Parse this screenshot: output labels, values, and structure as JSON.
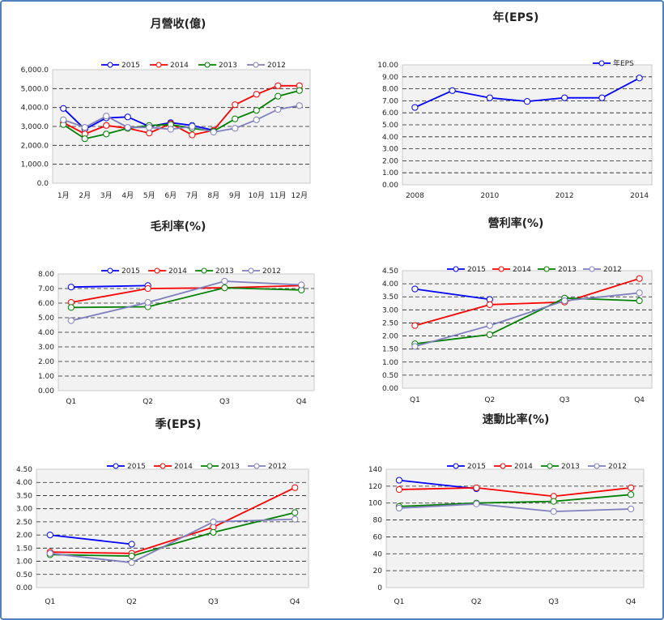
{
  "chart_data": [
    {
      "id": "c1",
      "type": "line",
      "title": "月營收(億)",
      "categories": [
        "1月",
        "2月",
        "3月",
        "4月",
        "5月",
        "6月",
        "7月",
        "8月",
        "9月",
        "10月",
        "11月",
        "12月"
      ],
      "ylim": [
        0,
        6000
      ],
      "ytick_step": 1000,
      "ytick_labels": [
        "0.0",
        "1,000.0",
        "2,000.0",
        "3,000.0",
        "4,000.0",
        "5,000.0",
        "6,000.0"
      ],
      "grid": true,
      "legend_position": "top",
      "series": [
        {
          "name": "2015",
          "color": "#0000ff",
          "values": [
            3950,
            2850,
            3450,
            3500,
            3000,
            3200,
            3050,
            2800,
            null,
            null,
            null,
            null
          ]
        },
        {
          "name": "2014",
          "color": "#ff0000",
          "values": [
            3200,
            2600,
            3050,
            2900,
            2650,
            3150,
            2550,
            2800,
            4150,
            4700,
            5150,
            5150
          ]
        },
        {
          "name": "2013",
          "color": "#008000",
          "values": [
            3100,
            2350,
            2600,
            2900,
            3050,
            3100,
            2900,
            2750,
            3400,
            3850,
            4600,
            4900
          ]
        },
        {
          "name": "2012",
          "color": "#7f7fbf",
          "values": [
            3350,
            2950,
            3550,
            2950,
            2950,
            2850,
            3000,
            2700,
            2900,
            3350,
            3900,
            4100
          ]
        }
      ]
    },
    {
      "id": "c2",
      "type": "line",
      "title": "年(EPS)",
      "categories": [
        "2008",
        "2009",
        "2010",
        "2011",
        "2012",
        "2013",
        "2014"
      ],
      "x_tick_labels": [
        "2008",
        "",
        "2010",
        "",
        "2012",
        "",
        "2014"
      ],
      "ylim": [
        0,
        10
      ],
      "ytick_step": 1,
      "ytick_labels": [
        "0.00",
        "1.00",
        "2.00",
        "3.00",
        "4.00",
        "5.00",
        "6.00",
        "7.00",
        "8.00",
        "9.00",
        "10.00"
      ],
      "grid": true,
      "legend_position": "top-right",
      "series": [
        {
          "name": "年EPS",
          "color": "#0000ff",
          "values": [
            6.45,
            7.85,
            7.25,
            6.95,
            7.25,
            7.25,
            8.9
          ]
        }
      ]
    },
    {
      "id": "c3",
      "type": "line",
      "title": "毛利率(%)",
      "categories": [
        "Q1",
        "Q2",
        "Q3",
        "Q4"
      ],
      "ylim": [
        0,
        8
      ],
      "ytick_step": 1,
      "ytick_labels": [
        "0.00",
        "1.00",
        "2.00",
        "3.00",
        "4.00",
        "5.00",
        "6.00",
        "7.00",
        "8.00"
      ],
      "grid": true,
      "legend_position": "top",
      "series": [
        {
          "name": "2015",
          "color": "#0000ff",
          "values": [
            7.1,
            7.2,
            null,
            null
          ]
        },
        {
          "name": "2014",
          "color": "#ff0000",
          "values": [
            6.05,
            7.0,
            7.05,
            7.2
          ]
        },
        {
          "name": "2013",
          "color": "#008000",
          "values": [
            5.7,
            5.75,
            7.05,
            6.9
          ]
        },
        {
          "name": "2012",
          "color": "#7f7fbf",
          "values": [
            4.8,
            6.05,
            7.5,
            7.25
          ]
        }
      ]
    },
    {
      "id": "c4",
      "type": "line",
      "title": "營利率(%)",
      "categories": [
        "Q1",
        "Q2",
        "Q3",
        "Q4"
      ],
      "ylim": [
        0,
        4.5
      ],
      "ytick_step": 0.5,
      "ytick_labels": [
        "0.00",
        "0.50",
        "1.00",
        "1.50",
        "2.00",
        "2.50",
        "3.00",
        "3.50",
        "4.00",
        "4.50"
      ],
      "grid": true,
      "legend_position": "top",
      "series": [
        {
          "name": "2015",
          "color": "#0000ff",
          "values": [
            3.8,
            3.4,
            null,
            null
          ]
        },
        {
          "name": "2014",
          "color": "#ff0000",
          "values": [
            2.4,
            3.2,
            3.3,
            4.2
          ]
        },
        {
          "name": "2013",
          "color": "#008000",
          "values": [
            1.7,
            2.05,
            3.45,
            3.35
          ]
        },
        {
          "name": "2012",
          "color": "#7f7fbf",
          "values": [
            1.6,
            2.4,
            3.35,
            3.65
          ]
        }
      ]
    },
    {
      "id": "c5",
      "type": "line",
      "title": "季(EPS)",
      "categories": [
        "Q1",
        "Q2",
        "Q3",
        "Q4"
      ],
      "ylim": [
        0,
        4.5
      ],
      "ytick_step": 0.5,
      "ytick_labels": [
        "0.00",
        "0.50",
        "1.00",
        "1.50",
        "2.00",
        "2.50",
        "3.00",
        "3.50",
        "4.00",
        "4.50"
      ],
      "grid": true,
      "legend_position": "top",
      "series": [
        {
          "name": "2015",
          "color": "#0000ff",
          "values": [
            2.0,
            1.65,
            null,
            null
          ]
        },
        {
          "name": "2014",
          "color": "#ff0000",
          "values": [
            1.35,
            1.3,
            2.3,
            3.8
          ]
        },
        {
          "name": "2013",
          "color": "#008000",
          "values": [
            1.25,
            1.2,
            2.1,
            2.85
          ]
        },
        {
          "name": "2012",
          "color": "#7f7fbf",
          "values": [
            1.3,
            0.95,
            2.5,
            2.6
          ]
        }
      ]
    },
    {
      "id": "c6",
      "type": "line",
      "title": "速動比率(%)",
      "categories": [
        "Q1",
        "Q2",
        "Q3",
        "Q4"
      ],
      "ylim": [
        0,
        140
      ],
      "ytick_step": 20,
      "ytick_labels": [
        "0",
        "20",
        "40",
        "60",
        "80",
        "100",
        "120",
        "140"
      ],
      "grid": true,
      "legend_position": "top",
      "series": [
        {
          "name": "2015",
          "color": "#0000ff",
          "values": [
            127,
            117,
            null,
            null
          ]
        },
        {
          "name": "2014",
          "color": "#ff0000",
          "values": [
            116,
            118,
            108,
            118
          ]
        },
        {
          "name": "2013",
          "color": "#008000",
          "values": [
            96,
            100,
            102,
            110
          ]
        },
        {
          "name": "2012",
          "color": "#7f7fbf",
          "values": [
            94,
            99,
            90,
            93
          ]
        }
      ]
    }
  ]
}
